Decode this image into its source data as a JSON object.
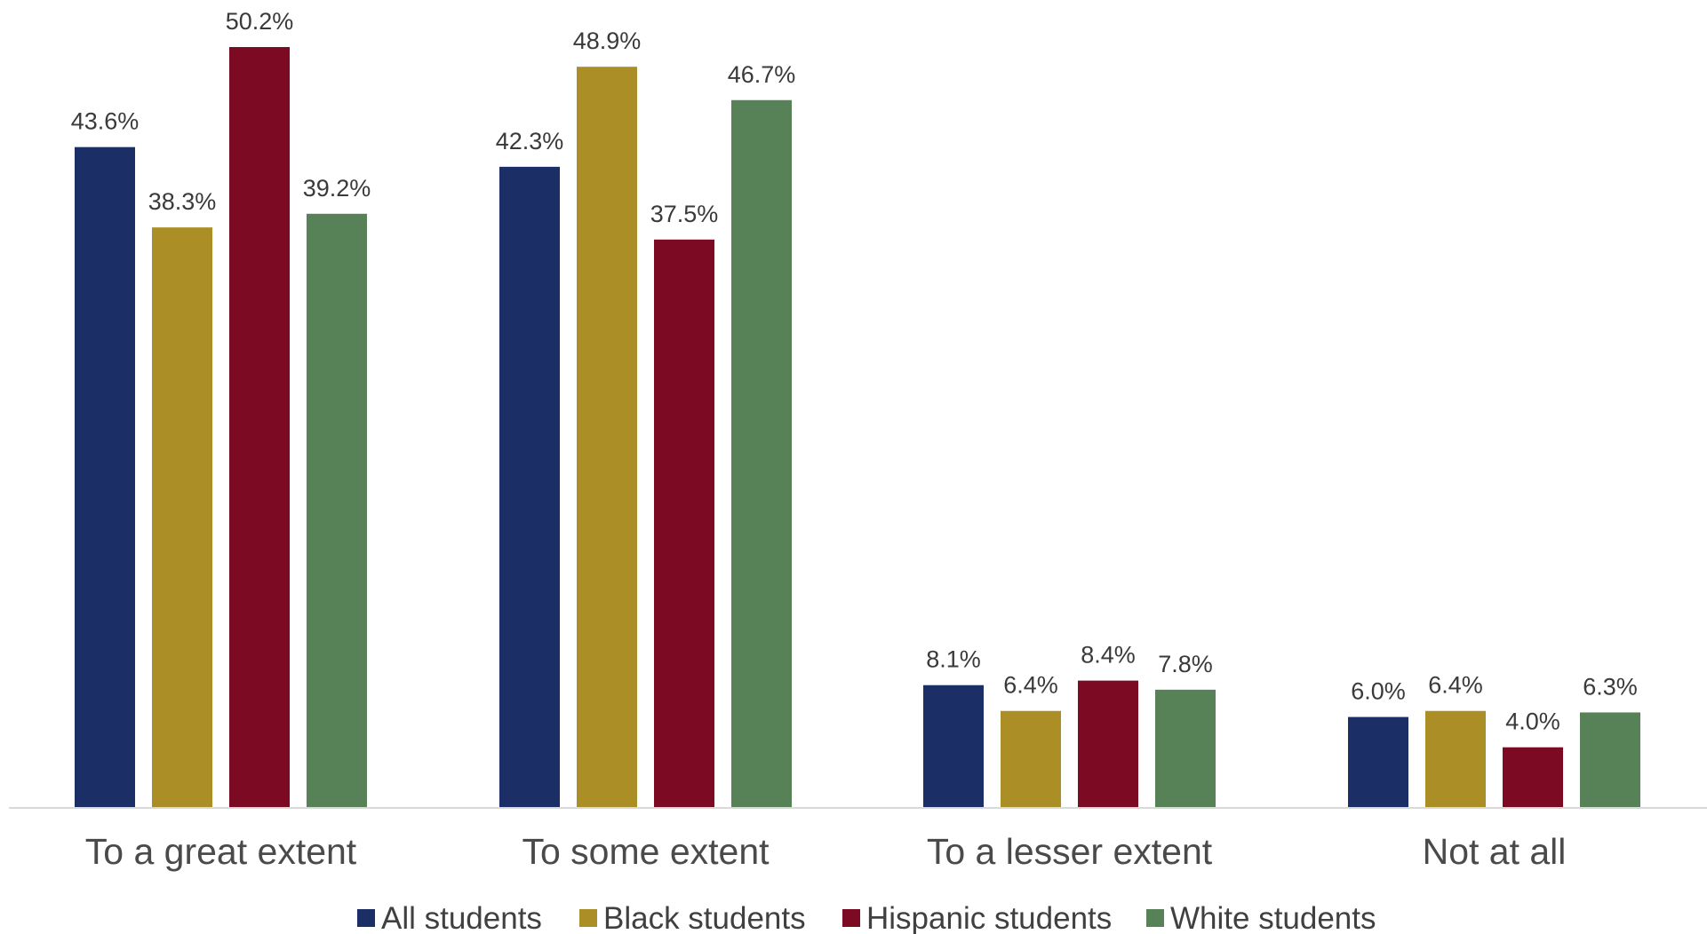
{
  "chart_data": {
    "type": "bar",
    "categories": [
      "To a great extent",
      "To some extent",
      "To a lesser extent",
      "Not at all"
    ],
    "series": [
      {
        "name": "All students",
        "color": "#1b2f66",
        "values": [
          43.6,
          42.3,
          8.1,
          6.0
        ],
        "labels": [
          "43.6%",
          "42.3%",
          "8.1%",
          "6.0%"
        ]
      },
      {
        "name": "Black students",
        "color": "#ab8e26",
        "values": [
          38.3,
          48.9,
          6.4,
          6.4
        ],
        "labels": [
          "38.3%",
          "48.9%",
          "6.4%",
          "6.4%"
        ]
      },
      {
        "name": "Hispanic students",
        "color": "#7c0a22",
        "values": [
          50.2,
          37.5,
          8.4,
          4.0
        ],
        "labels": [
          "50.2%",
          "37.5%",
          "8.4%",
          "4.0%"
        ]
      },
      {
        "name": "White students",
        "color": "#578258",
        "values": [
          39.2,
          46.7,
          7.8,
          6.3
        ],
        "labels": [
          "39.2%",
          "46.7%",
          "7.8%",
          "6.3%"
        ]
      }
    ],
    "title": "",
    "xlabel": "",
    "ylabel": "",
    "ylim": [
      0,
      52
    ],
    "grid": false,
    "legend_position": "bottom",
    "axis_color": "#d9d9d9"
  }
}
